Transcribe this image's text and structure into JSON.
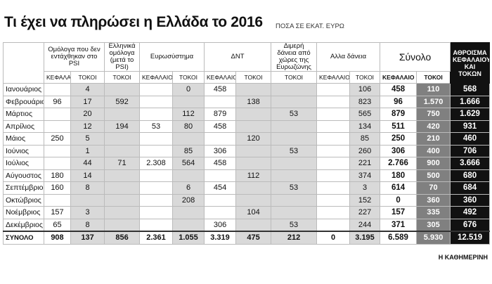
{
  "header": {
    "title": "Τι έχει να πληρώσει η Ελλάδα το 2016",
    "subtitle": "ΠΟΣΑ ΣΕ ΕΚΑΤ. ΕΥΡΩ"
  },
  "table": {
    "groups": [
      {
        "label": "Ομόλογα που δεν εντάχθηκαν στο PSI",
        "columns": [
          "ΚΕΦΑΛΑΙΟ",
          "ΤΟΚΟΙ"
        ]
      },
      {
        "label": "Ελληνικά ομόλογα (μετά το PSI)",
        "columns": [
          "ΤΟΚΟΙ"
        ]
      },
      {
        "label": "Ευρωσύστημα",
        "columns": [
          "ΚΕΦΑΛΑΙΟ",
          "ΤΟΚΟΙ"
        ]
      },
      {
        "label": "ΔΝΤ",
        "columns": [
          "ΚΕΦΑΛΑΙΟ",
          "ΤΟΚΟΙ"
        ]
      },
      {
        "label": "Διμερή δάνεια από χώρες της Ευρωζώνης",
        "columns": [
          "ΤΟΚΟΙ"
        ]
      },
      {
        "label": "Αλλα δάνεια",
        "columns": [
          "ΚΕΦΑΛΑΙΟ",
          "ΤΟΚΟΙ"
        ]
      },
      {
        "label": "Σύνολο",
        "columns": [
          "ΚΕΦΑΛΑΙΟ",
          "ΤΟΚΟΙ"
        ]
      },
      {
        "label": "ΑΘΡΟΙΣΜΑ ΚΕΦΑΛΑΙΟΥ ΚΑΙ ΤΟΚΩΝ"
      }
    ],
    "rows": [
      {
        "month": "Ιανουάριος",
        "cells": [
          null,
          "4",
          null,
          null,
          "0",
          "458",
          null,
          null,
          null,
          "106",
          "458",
          "110",
          "568"
        ]
      },
      {
        "month": "Φεβρουάριος",
        "cells": [
          "96",
          "17",
          "592",
          null,
          null,
          null,
          "138",
          null,
          null,
          "823",
          "96",
          "1.570",
          "1.666"
        ]
      },
      {
        "month": "Μάρτιος",
        "cells": [
          null,
          "20",
          null,
          null,
          "112",
          "879",
          null,
          "53",
          null,
          "565",
          "879",
          "750",
          "1.629"
        ]
      },
      {
        "month": "Απρίλιος",
        "cells": [
          null,
          "12",
          "194",
          "53",
          "80",
          "458",
          null,
          null,
          null,
          "134",
          "511",
          "420",
          "931"
        ]
      },
      {
        "month": "Μάιος",
        "cells": [
          "250",
          "5",
          null,
          null,
          null,
          null,
          "120",
          null,
          null,
          "85",
          "250",
          "210",
          "460"
        ]
      },
      {
        "month": "Ιούνιος",
        "cells": [
          null,
          "1",
          null,
          null,
          "85",
          "306",
          null,
          "53",
          null,
          "260",
          "306",
          "400",
          "706"
        ]
      },
      {
        "month": "Ιούλιος",
        "cells": [
          null,
          "44",
          "71",
          "2.308",
          "564",
          "458",
          null,
          null,
          null,
          "221",
          "2.766",
          "900",
          "3.666"
        ]
      },
      {
        "month": "Αύγουστος",
        "cells": [
          "180",
          "14",
          null,
          null,
          null,
          null,
          "112",
          null,
          null,
          "374",
          "180",
          "500",
          "680"
        ]
      },
      {
        "month": "Σεπτέμβριος",
        "cells": [
          "160",
          "8",
          null,
          null,
          "6",
          "454",
          null,
          "53",
          null,
          "3",
          "614",
          "70",
          "684"
        ]
      },
      {
        "month": "Οκτώβριος",
        "cells": [
          null,
          null,
          null,
          null,
          "208",
          null,
          null,
          null,
          null,
          "152",
          "0",
          "360",
          "360"
        ]
      },
      {
        "month": "Νοέμβριος",
        "cells": [
          "157",
          "3",
          null,
          null,
          null,
          null,
          "104",
          null,
          null,
          "227",
          "157",
          "335",
          "492"
        ]
      },
      {
        "month": "Δεκέμβριος",
        "cells": [
          "65",
          "8",
          null,
          null,
          null,
          "306",
          null,
          "53",
          null,
          "244",
          "371",
          "305",
          "676"
        ]
      }
    ],
    "total": {
      "month": "ΣΥΝΟΛΟ",
      "cells": [
        "908",
        "137",
        "856",
        "2.361",
        "1.055",
        "3.319",
        "475",
        "212",
        "0",
        "3.195",
        "6.589",
        "5.930",
        "12.519"
      ]
    }
  },
  "footer": "Η ΚΑΘΗΜΕΡΙΝΗ"
}
